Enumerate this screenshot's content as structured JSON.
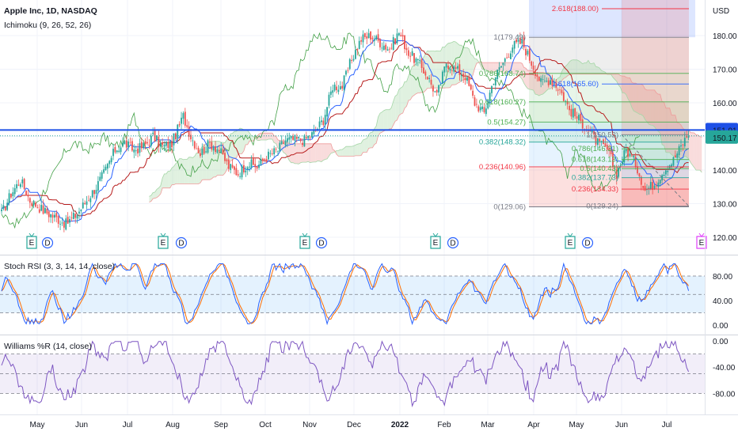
{
  "header": {
    "title": "Apple Inc, 1D, NASDAQ",
    "indicator": "Ichimoku (9, 26, 52, 26)",
    "currency": "USD"
  },
  "colors": {
    "up": "#26a69a",
    "down": "#ef5350",
    "tenkan": "#2962ff",
    "kijun": "#b71c1c",
    "chikou": "#43a047",
    "span_up": "#a5d6a7",
    "span_down": "#ef9a9a",
    "level_line": "#1e50e6",
    "last_price": "#26a69a",
    "rsi_k": "#2962ff",
    "rsi_d": "#ff6d00",
    "wr": "#7e57c2"
  },
  "chart_data": [
    {
      "type": "candlestick",
      "name": "price",
      "ylim": [
        116,
        190
      ],
      "yticks": [
        "120.00",
        "130.00",
        "140.00",
        "150.00",
        "160.00",
        "170.00",
        "180.00"
      ],
      "xticks": [
        "May",
        "Jun",
        "Jul",
        "Aug",
        "Sep",
        "Oct",
        "Nov",
        "Dec",
        "2022",
        "Feb",
        "Mar",
        "Apr",
        "May",
        "Jun",
        "Jul"
      ],
      "anchors": [
        [
          0,
          127
        ],
        [
          5,
          133
        ],
        [
          10,
          137
        ],
        [
          15,
          131
        ],
        [
          22,
          128
        ],
        [
          28,
          126
        ],
        [
          34,
          124
        ],
        [
          40,
          127
        ],
        [
          45,
          131
        ],
        [
          50,
          135
        ],
        [
          55,
          140
        ],
        [
          60,
          146
        ],
        [
          65,
          148
        ],
        [
          70,
          146
        ],
        [
          75,
          147
        ],
        [
          80,
          150
        ],
        [
          85,
          147
        ],
        [
          90,
          148
        ],
        [
          96,
          156
        ],
        [
          100,
          150
        ],
        [
          105,
          145
        ],
        [
          110,
          148
        ],
        [
          115,
          146
        ],
        [
          120,
          141
        ],
        [
          125,
          139
        ],
        [
          130,
          142
        ],
        [
          135,
          141
        ],
        [
          140,
          144
        ],
        [
          146,
          146
        ],
        [
          150,
          149
        ],
        [
          155,
          149
        ],
        [
          160,
          149
        ],
        [
          165,
          151
        ],
        [
          170,
          155
        ],
        [
          175,
          165
        ],
        [
          180,
          165
        ],
        [
          185,
          173
        ],
        [
          190,
          179
        ],
        [
          195,
          180
        ],
        [
          200,
          178
        ],
        [
          205,
          176
        ],
        [
          210,
          181
        ],
        [
          215,
          175
        ],
        [
          220,
          172
        ],
        [
          225,
          168
        ],
        [
          230,
          162
        ],
        [
          235,
          172
        ],
        [
          240,
          170
        ],
        [
          245,
          168
        ],
        [
          250,
          160
        ],
        [
          255,
          157
        ],
        [
          260,
          167
        ],
        [
          265,
          172
        ],
        [
          270,
          177
        ],
        [
          275,
          178
        ],
        [
          280,
          172
        ],
        [
          285,
          166
        ],
        [
          290,
          167
        ],
        [
          295,
          164
        ],
        [
          300,
          158
        ],
        [
          305,
          155
        ],
        [
          310,
          152
        ],
        [
          315,
          148
        ],
        [
          320,
          146
        ],
        [
          325,
          139
        ],
        [
          330,
          146
        ],
        [
          335,
          142
        ],
        [
          340,
          134
        ],
        [
          345,
          136
        ],
        [
          350,
          140
        ],
        [
          355,
          143
        ],
        [
          360,
          148
        ],
        [
          363,
          151
        ]
      ],
      "last_price": "150.17",
      "horizontal_level": "151.91",
      "events": [
        "E",
        "D",
        "E",
        "D",
        "E",
        "D",
        "E",
        "D",
        "E",
        "D",
        "E"
      ]
    },
    {
      "type": "fibonacci",
      "name": "fib-left",
      "levels": [
        {
          "label": "1(179.49)",
          "value": 179.49
        },
        {
          "label": "0.786(168.74)",
          "value": 168.74
        },
        {
          "label": "0.618(160.27)",
          "value": 160.27
        },
        {
          "label": "0.5(154.27)",
          "value": 154.27
        },
        {
          "label": "0.382(148.32)",
          "value": 148.32
        },
        {
          "label": "0.236(140.96)",
          "value": 140.96
        },
        {
          "label": "0(129.06)",
          "value": 129.06
        }
      ]
    },
    {
      "type": "fibonacci",
      "name": "fib-right",
      "levels": [
        {
          "label": "2.618(188.00)",
          "value": 188.0
        },
        {
          "label": "1.618(165.60)",
          "value": 165.6
        },
        {
          "label": "1(150.52)",
          "value": 150.52
        },
        {
          "label": "0.786(146.31)",
          "value": 146.31
        },
        {
          "label": "0.618(143.13)",
          "value": 143.13
        },
        {
          "label": "0.5(140.43)",
          "value": 140.43
        },
        {
          "label": "0.382(137.73)",
          "value": 137.73
        },
        {
          "label": "0.236(134.33)",
          "value": 134.33
        },
        {
          "label": "0(129.24)",
          "value": 129.24
        }
      ]
    },
    {
      "type": "line",
      "name": "Stoch RSI (3, 3, 14, 14, close)",
      "ylim": [
        0,
        100
      ],
      "yticks": [
        "0.00",
        "40.00",
        "80.00"
      ],
      "bands": [
        20,
        50,
        80
      ]
    },
    {
      "type": "line",
      "name": "Williams %R (14, close)",
      "ylim": [
        -100,
        0
      ],
      "yticks": [
        "-80.00",
        "-40.00",
        "0.00"
      ],
      "bands": [
        -80,
        -50,
        -20
      ]
    }
  ]
}
